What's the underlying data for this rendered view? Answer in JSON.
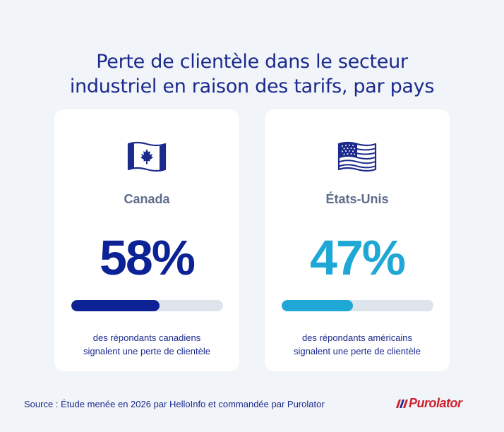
{
  "title": {
    "line1": "Perte de clientèle dans le secteur",
    "line2": "industriel en raison des tarifs, par pays"
  },
  "cards": [
    {
      "country": "Canada",
      "percent": "58%",
      "value": 58,
      "color": "#0d2294",
      "flag_icon": "canada-flag-icon",
      "desc_line1": "des répondants canadiens",
      "desc_line2": "signalent une perte de clientèle"
    },
    {
      "country": "États-Unis",
      "percent": "47%",
      "value": 47,
      "color": "#1fa8d6",
      "flag_icon": "usa-flag-icon",
      "desc_line1": "des répondants américains",
      "desc_line2": "signalent une perte de clientèle"
    }
  ],
  "source": "Source : Étude menée en 2026 par HelloInfo et commandée par Purolator",
  "logo": {
    "text": "Purolator",
    "color": "#d0202e"
  }
}
